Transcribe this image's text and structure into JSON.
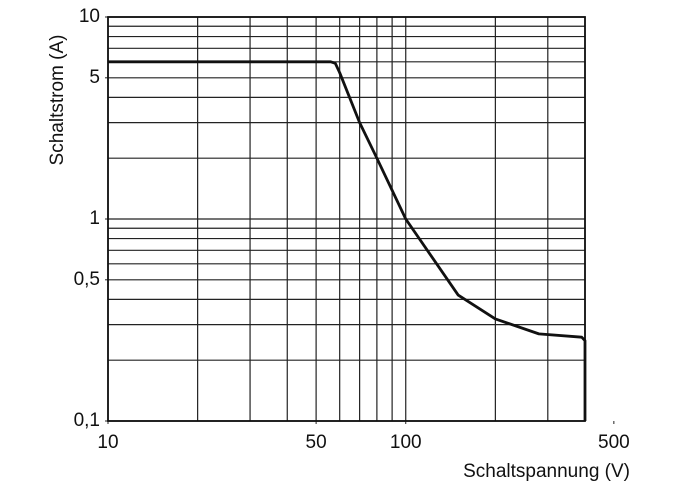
{
  "chart_data": {
    "type": "line",
    "xlabel": "Schaltspannung (V)",
    "ylabel": "Schaltstrom (A)",
    "xscale": "log",
    "yscale": "log",
    "xlim": [
      10,
      400
    ],
    "ylim": [
      0.1,
      10
    ],
    "xticks": [
      10,
      50,
      100,
      500
    ],
    "yticks": [
      {
        "value": 0.1,
        "label": "0,1"
      },
      {
        "value": 0.5,
        "label": "0,5"
      },
      1,
      5,
      10
    ],
    "xgrid": [
      10,
      20,
      30,
      40,
      50,
      60,
      70,
      80,
      90,
      100,
      200,
      300,
      400
    ],
    "ygrid": [
      0.1,
      0.2,
      0.3,
      0.4,
      0.5,
      0.6,
      0.7,
      0.8,
      0.9,
      1,
      2,
      3,
      4,
      5,
      6,
      7,
      8,
      9,
      10
    ],
    "grid": true,
    "series": [
      {
        "color": "#111111",
        "x": [
          10,
          56,
          58,
          60,
          70,
          80,
          100,
          150,
          200,
          280,
          390,
          400,
          400
        ],
        "values": [
          6,
          6,
          5.9,
          5.3,
          3,
          2,
          1,
          0.42,
          0.32,
          0.27,
          0.26,
          0.25,
          0.1
        ]
      }
    ]
  }
}
